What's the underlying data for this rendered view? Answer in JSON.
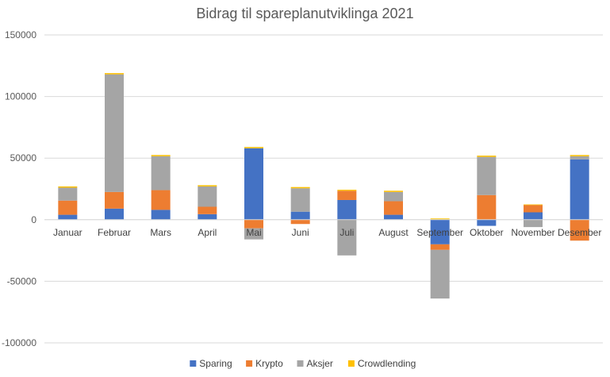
{
  "chart_data": {
    "type": "bar",
    "stacked": true,
    "title": "Bidrag til spareplanutviklinga 2021",
    "xlabel": "",
    "ylabel": "",
    "ylim": [
      -100000,
      150000
    ],
    "yticks": [
      150000,
      100000,
      50000,
      0,
      -50000,
      -100000
    ],
    "grid": true,
    "legend_position": "bottom",
    "categories": [
      "Januar",
      "Februar",
      "Mars",
      "April",
      "Mai",
      "Juni",
      "Juli",
      "August",
      "September",
      "Oktober",
      "November",
      "Desember"
    ],
    "series": [
      {
        "name": "Sparing",
        "color": "#4472C4",
        "values": [
          4000,
          9000,
          8000,
          4500,
          58000,
          6500,
          16000,
          4000,
          -20000,
          -5000,
          6000,
          49000
        ]
      },
      {
        "name": "Krypto",
        "color": "#ED7D31",
        "values": [
          11500,
          13500,
          16000,
          6000,
          -7000,
          -3500,
          7500,
          11000,
          -4500,
          20000,
          6000,
          -17000
        ]
      },
      {
        "name": "Aksjer",
        "color": "#A5A5A5",
        "values": [
          10500,
          95500,
          27500,
          16500,
          -9000,
          19000,
          -29000,
          7500,
          -39500,
          31000,
          -6000,
          2500
        ]
      },
      {
        "name": "Crowdlending",
        "color": "#FFC000",
        "values": [
          1000,
          1000,
          1000,
          1000,
          1000,
          1000,
          800,
          1000,
          1000,
          1000,
          400,
          1000
        ]
      }
    ]
  }
}
